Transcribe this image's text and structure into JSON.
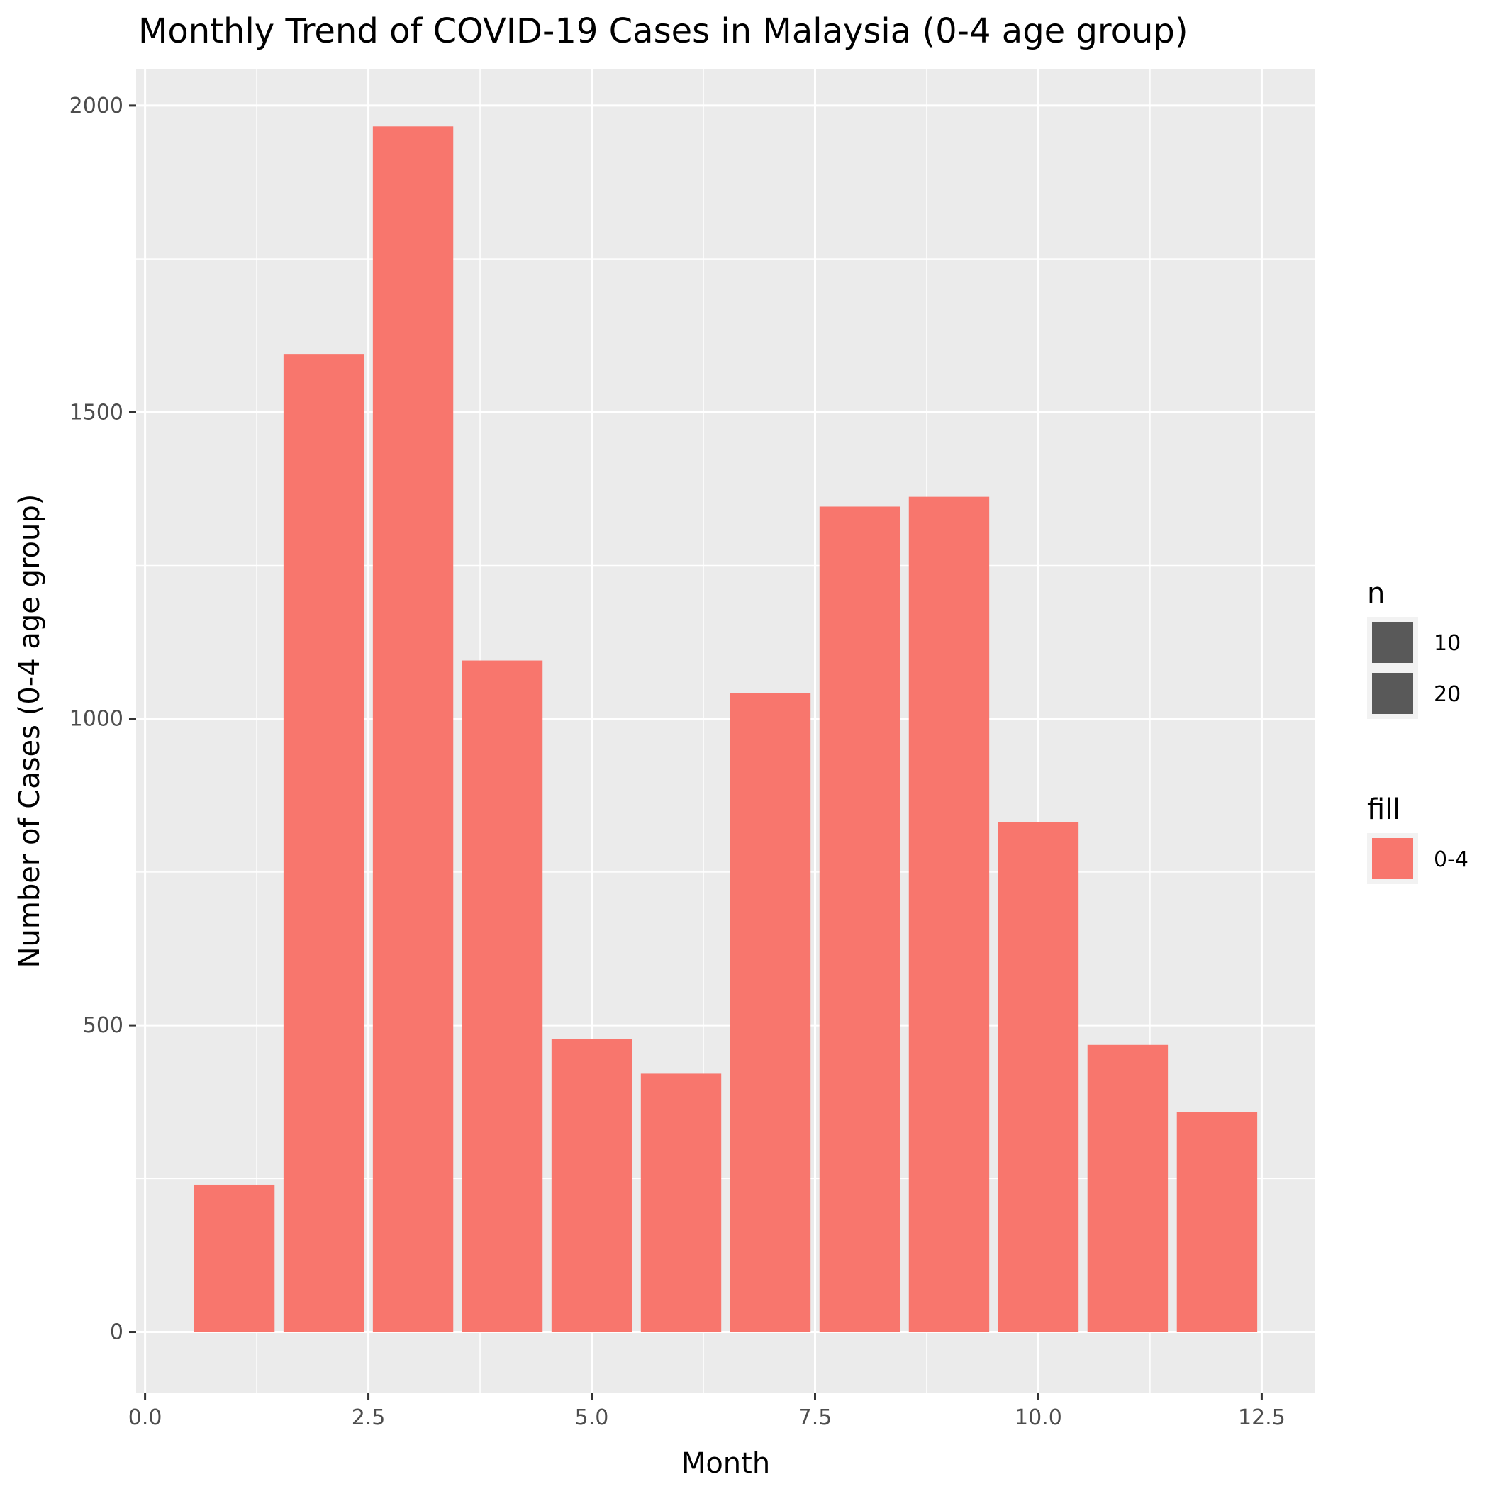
{
  "chart_data": {
    "type": "bar",
    "title": "Monthly Trend of COVID-19 Cases in Malaysia (0-4 age group)",
    "xlabel": "Month",
    "ylabel": "Number of Cases (0-4 age group)",
    "xlim": [
      -0.1,
      13.1
    ],
    "ylim": [
      -100,
      2060
    ],
    "x_ticks": [
      {
        "value": 0,
        "label": "0.0"
      },
      {
        "value": 2.5,
        "label": "2.5"
      },
      {
        "value": 5,
        "label": "5.0"
      },
      {
        "value": 7.5,
        "label": "7.5"
      },
      {
        "value": 10,
        "label": "10.0"
      },
      {
        "value": 12.5,
        "label": "12.5"
      }
    ],
    "y_ticks": [
      {
        "value": 0,
        "label": "0"
      },
      {
        "value": 500,
        "label": "500"
      },
      {
        "value": 1000,
        "label": "1000"
      },
      {
        "value": 1500,
        "label": "1500"
      },
      {
        "value": 2000,
        "label": "2000"
      }
    ],
    "bar_width": 0.9,
    "x": [
      1,
      2,
      3,
      4,
      5,
      6,
      7,
      8,
      9,
      10,
      11,
      12
    ],
    "values": [
      240,
      1595,
      1966,
      1095,
      477,
      421,
      1042,
      1346,
      1362,
      831,
      468,
      359
    ],
    "bar_color": "#F8766D",
    "panel_background": "#EBEBEB",
    "grid": true,
    "grid_color": "#FFFFFF",
    "legend_position": "right",
    "legends": [
      {
        "title": "n",
        "key_color": "#595959",
        "entries": [
          "10",
          "20"
        ]
      },
      {
        "title": "fill",
        "key_color": "#F8766D",
        "entries": [
          "0-4"
        ]
      }
    ]
  }
}
